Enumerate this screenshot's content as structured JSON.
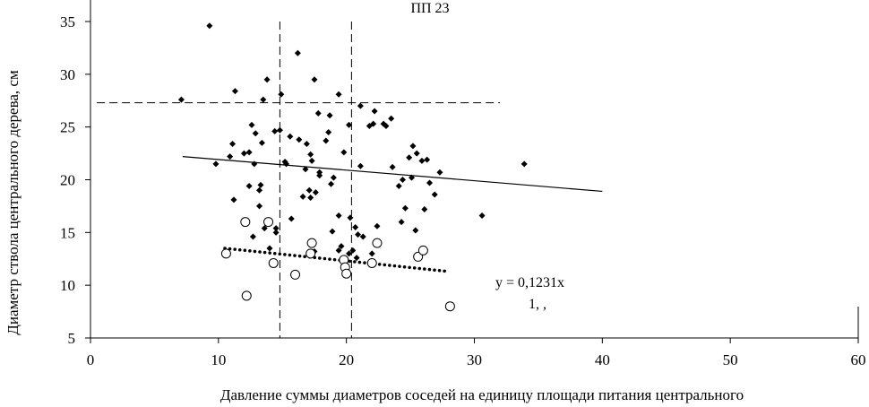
{
  "chart_data": {
    "type": "scatter",
    "title": "ПП 23",
    "xlabel": "Давление суммы диаметров соседей  на  единицу площади питания центрального",
    "ylabel": "Диаметр ствола центрального дерева,  см",
    "xlim": [
      0,
      60
    ],
    "ylim": [
      5,
      35
    ],
    "x_ticks": [
      0,
      10,
      20,
      30,
      40,
      50,
      60
    ],
    "y_ticks": [
      5,
      10,
      15,
      20,
      25,
      30,
      35
    ],
    "grid": false,
    "legend": "none",
    "annotation_lines": [
      "y = 0,1231x",
      "1,  ,   "
    ],
    "reference_lines": {
      "vertical_x": [
        14.8,
        20.4
      ],
      "horizontal_y": 27.3,
      "horizontal_x_range": [
        0.5,
        32
      ]
    },
    "series": [
      {
        "marker": "filled-diamond",
        "color": "#000000",
        "points": [
          [
            7.1,
            27.6
          ],
          [
            9.3,
            34.6
          ],
          [
            9.8,
            21.5
          ],
          [
            10.9,
            22.2
          ],
          [
            11.1,
            23.4
          ],
          [
            11.3,
            28.4
          ],
          [
            11.2,
            18.1
          ],
          [
            12.0,
            22.5
          ],
          [
            12.4,
            22.6
          ],
          [
            12.6,
            25.2
          ],
          [
            12.8,
            21.5
          ],
          [
            12.4,
            19.4
          ],
          [
            12.9,
            24.4
          ],
          [
            13.4,
            23.5
          ],
          [
            13.2,
            19.0
          ],
          [
            13.3,
            19.5
          ],
          [
            13.5,
            27.6
          ],
          [
            13.8,
            29.5
          ],
          [
            13.2,
            17.5
          ],
          [
            13.6,
            15.4
          ],
          [
            14.5,
            15.4
          ],
          [
            14.5,
            15.0
          ],
          [
            14.4,
            24.6
          ],
          [
            14.8,
            24.7
          ],
          [
            14.9,
            28.1
          ],
          [
            15.2,
            21.7
          ],
          [
            15.3,
            21.5
          ],
          [
            15.6,
            24.1
          ],
          [
            15.7,
            16.3
          ],
          [
            12.7,
            14.6
          ],
          [
            14.0,
            13.5
          ],
          [
            16.2,
            32.0
          ],
          [
            16.3,
            23.8
          ],
          [
            16.8,
            21.0
          ],
          [
            16.6,
            18.4
          ],
          [
            16.9,
            23.4
          ],
          [
            17.1,
            19.0
          ],
          [
            17.2,
            18.3
          ],
          [
            17.3,
            21.8
          ],
          [
            17.2,
            22.4
          ],
          [
            17.5,
            29.5
          ],
          [
            17.8,
            26.3
          ],
          [
            17.6,
            18.8
          ],
          [
            17.9,
            20.7
          ],
          [
            17.9,
            20.4
          ],
          [
            18.4,
            23.7
          ],
          [
            18.6,
            24.5
          ],
          [
            18.8,
            19.6
          ],
          [
            18.7,
            26.1
          ],
          [
            19.0,
            20.2
          ],
          [
            19.4,
            28.1
          ],
          [
            18.9,
            15.1
          ],
          [
            19.4,
            16.6
          ],
          [
            17.5,
            13.2
          ],
          [
            19.4,
            13.3
          ],
          [
            19.6,
            13.7
          ],
          [
            19.8,
            22.6
          ],
          [
            20.2,
            25.2
          ],
          [
            20.3,
            16.4
          ],
          [
            20.7,
            15.5
          ],
          [
            20.9,
            14.8
          ],
          [
            20.5,
            13.3
          ],
          [
            20.2,
            13.0
          ],
          [
            21.1,
            27.0
          ],
          [
            21.1,
            21.3
          ],
          [
            21.8,
            25.1
          ],
          [
            22.1,
            25.3
          ],
          [
            22.2,
            26.5
          ],
          [
            22.4,
            15.6
          ],
          [
            22.9,
            25.3
          ],
          [
            23.1,
            25.1
          ],
          [
            23.5,
            25.8
          ],
          [
            23.6,
            21.2
          ],
          [
            24.1,
            19.4
          ],
          [
            24.4,
            20.0
          ],
          [
            24.6,
            17.3
          ],
          [
            24.9,
            22.1
          ],
          [
            24.3,
            16.0
          ],
          [
            25.1,
            20.2
          ],
          [
            25.2,
            23.2
          ],
          [
            25.5,
            22.5
          ],
          [
            25.4,
            15.2
          ],
          [
            25.9,
            21.8
          ],
          [
            26.1,
            17.2
          ],
          [
            26.3,
            21.9
          ],
          [
            26.5,
            19.7
          ],
          [
            26.9,
            18.6
          ],
          [
            27.3,
            20.7
          ],
          [
            22.0,
            13.0
          ],
          [
            20.8,
            12.6
          ],
          [
            30.6,
            16.6
          ],
          [
            33.9,
            21.5
          ],
          [
            21.3,
            14.6
          ]
        ]
      },
      {
        "marker": "open-circle",
        "color": "#000000",
        "points": [
          [
            10.6,
            13.0
          ],
          [
            12.1,
            16.0
          ],
          [
            12.2,
            9.0
          ],
          [
            13.9,
            16.0
          ],
          [
            14.3,
            12.1
          ],
          [
            16.0,
            11.0
          ],
          [
            17.3,
            14.0
          ],
          [
            17.2,
            13.0
          ],
          [
            19.8,
            12.4
          ],
          [
            19.9,
            11.7
          ],
          [
            20.0,
            11.1
          ],
          [
            22.0,
            12.1
          ],
          [
            22.4,
            14.0
          ],
          [
            25.6,
            12.7
          ],
          [
            26.0,
            13.3
          ],
          [
            28.1,
            8.0
          ]
        ]
      }
    ],
    "trendlines": [
      {
        "style": "solid",
        "x": [
          7.2,
          40.0
        ],
        "y": [
          22.2,
          18.9
        ]
      },
      {
        "style": "dotted",
        "x": [
          10.5,
          28.0
        ],
        "y": [
          13.5,
          11.3
        ]
      }
    ]
  }
}
